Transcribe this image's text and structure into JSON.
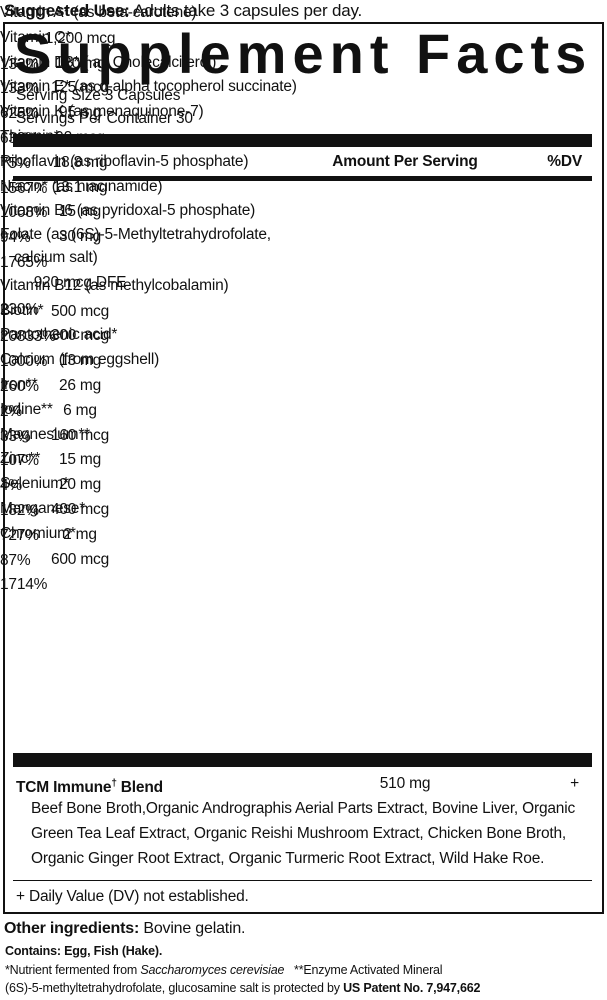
{
  "suggested_use": {
    "label": "Suggested Use:",
    "text": "Adults take 3 capsules per day."
  },
  "title": "Supplement Facts",
  "serving": [
    "Serving Size 3 Capsules",
    "Servings Per Container 30"
  ],
  "table": {
    "header": [
      "Amount Per Serving",
      "%DV"
    ],
    "rows": [
      [
        "Vitamin A* (as beta-carotene)",
        "1,200 mcg",
        "133%"
      ],
      [
        "Vitamin C*",
        "120 mg",
        "133%"
      ],
      [
        "Vitamin D3* ( as Cholecalciferol)",
        "125 mcg",
        "625%"
      ],
      [
        "Vitamin E* (as d-alpha tocopherol succinate)",
        "95 mg",
        "633%"
      ],
      [
        "Vitamin K (as menaquinone-7)",
        "90 mcg",
        "75%"
      ],
      [
        "Thiamin*",
        "18.8 mg",
        "1567%"
      ],
      [
        "Riboflavin (as riboflavin-5 phosphate)",
        "13.1 mg",
        "1008%"
      ],
      [
        "Niacin* (as niacinamide)",
        "15 mg",
        "94%"
      ],
      [
        "Vitamin B6 (as pyridoxal-5 phosphate)",
        "30 mg",
        "1765%"
      ],
      [
        [
          "Folate (as (6S)-5-Methyltetrahydrofolate,",
          "calcium salt)"
        ],
        "920 mcg DFE",
        "230%"
      ],
      [
        "Vitamin B12 (as methylcobalamin)",
        "500 mcg",
        "20833%"
      ],
      [
        "Biotin*",
        "300 mcg",
        "1000%"
      ],
      [
        "Pantothenic acid*",
        "13 mg",
        "260%"
      ],
      [
        "Calcium (from eggshell)",
        "26 mg",
        "2%"
      ],
      [
        "Iron**",
        "6 mg",
        "33%"
      ],
      [
        "Iodine**",
        "160 mcg",
        "107%"
      ],
      [
        "Magnesium**",
        "15 mg",
        "4%"
      ],
      [
        "Zinc**",
        "20 mg",
        "182%"
      ],
      [
        "Selenium*",
        "400 mcg",
        "727%"
      ],
      [
        "Manganese*",
        "2 mg",
        "87%"
      ],
      [
        "Chromium*",
        "600 mcg",
        "1714%"
      ]
    ]
  },
  "blend": {
    "name": "TCM Immune",
    "symbol": "†",
    "suffix": "Blend",
    "amount": "510 mg",
    "dv": "+",
    "ingredients": "Beef Bone Broth,Organic Andrographis Aerial Parts Extract, Bovine Liver, Organic Green Tea Leaf Extract, Organic Reishi Mushroom Extract, Chicken Bone Broth, Organic Ginger Root Extract, Organic Turmeric Root Extract, Wild Hake Roe."
  },
  "footnote": "+ Daily Value (DV) not established.",
  "other_ingredients": {
    "label": "Other ingredients:",
    "text": "Bovine gelatin."
  },
  "contains": "Contains: Egg, Fish (Hake).",
  "notes": {
    "line1": [
      "*Nutrient fermented from",
      "Saccharomyces cerevisiae",
      "**Enzyme Activated Mineral"
    ],
    "line2": [
      "(6S)-5-methyltetrahydrofolate, glucosamine salt is protected by",
      "US Patent No. 7,947,662"
    ]
  }
}
